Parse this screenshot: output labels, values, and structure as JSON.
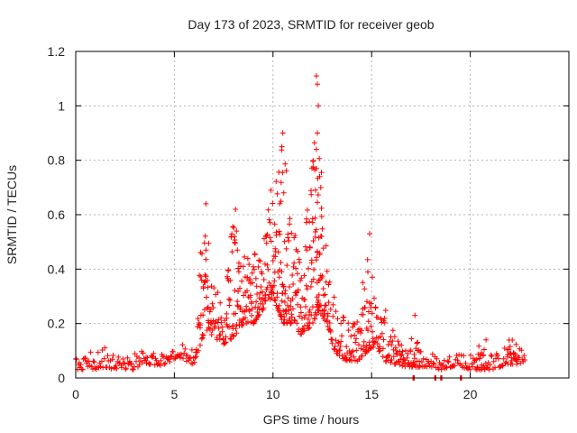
{
  "chart_data": {
    "type": "scatter",
    "title": "Day 173 of 2023, SRMTID for receiver geob",
    "xlabel": "GPS time / hours",
    "ylabel": "SRMTID / TECUs",
    "xlim": [
      0,
      25
    ],
    "ylim": [
      0,
      1.2
    ],
    "x_ticks": [
      0,
      5,
      10,
      15,
      20
    ],
    "x_tick_labels": [
      "0",
      "5",
      "10",
      "15",
      "20"
    ],
    "y_ticks": [
      0,
      0.2,
      0.4,
      0.6,
      0.8,
      1.0,
      1.2
    ],
    "y_tick_labels": [
      "0",
      "0.2",
      "0.4",
      "0.6",
      "0.8",
      "1",
      "1.2"
    ],
    "grid": true,
    "marker": "+",
    "series_color": "#ff0000",
    "series": [
      {
        "name": "SRMTID",
        "envelope": [
          [
            0.0,
            0.03,
            0.08
          ],
          [
            0.5,
            0.03,
            0.09
          ],
          [
            1.0,
            0.03,
            0.1
          ],
          [
            1.5,
            0.04,
            0.12
          ],
          [
            2.0,
            0.03,
            0.09
          ],
          [
            2.5,
            0.03,
            0.08
          ],
          [
            3.0,
            0.03,
            0.09
          ],
          [
            3.3,
            0.05,
            0.11
          ],
          [
            3.8,
            0.05,
            0.11
          ],
          [
            4.3,
            0.04,
            0.09
          ],
          [
            4.8,
            0.06,
            0.12
          ],
          [
            5.2,
            0.08,
            0.16
          ],
          [
            5.6,
            0.06,
            0.12
          ],
          [
            6.0,
            0.05,
            0.1
          ],
          [
            6.3,
            0.12,
            0.45
          ],
          [
            6.6,
            0.18,
            0.62
          ],
          [
            7.0,
            0.15,
            0.35
          ],
          [
            7.5,
            0.12,
            0.3
          ],
          [
            8.0,
            0.15,
            0.6
          ],
          [
            8.5,
            0.2,
            0.45
          ],
          [
            9.0,
            0.2,
            0.45
          ],
          [
            9.5,
            0.25,
            0.55
          ],
          [
            10.0,
            0.3,
            0.68
          ],
          [
            10.5,
            0.2,
            0.88
          ],
          [
            11.0,
            0.2,
            0.55
          ],
          [
            11.5,
            0.15,
            0.45
          ],
          [
            12.0,
            0.2,
            0.8
          ],
          [
            12.3,
            0.25,
            1.1
          ],
          [
            12.7,
            0.2,
            0.5
          ],
          [
            13.2,
            0.08,
            0.28
          ],
          [
            13.8,
            0.06,
            0.22
          ],
          [
            14.3,
            0.06,
            0.22
          ],
          [
            14.8,
            0.1,
            0.53
          ],
          [
            15.2,
            0.12,
            0.3
          ],
          [
            15.7,
            0.06,
            0.25
          ],
          [
            16.2,
            0.05,
            0.15
          ],
          [
            16.8,
            0.04,
            0.12
          ],
          [
            17.2,
            0.04,
            0.18
          ],
          [
            17.6,
            0.04,
            0.1
          ],
          [
            18.0,
            0.04,
            0.1
          ],
          [
            18.5,
            0.03,
            0.07
          ],
          [
            19.0,
            0.04,
            0.09
          ],
          [
            19.4,
            0.05,
            0.12
          ],
          [
            19.8,
            0.03,
            0.08
          ],
          [
            20.5,
            0.03,
            0.13
          ],
          [
            21.0,
            0.03,
            0.1
          ],
          [
            21.5,
            0.04,
            0.09
          ],
          [
            22.0,
            0.05,
            0.15
          ],
          [
            22.5,
            0.05,
            0.13
          ],
          [
            22.8,
            0.05,
            0.1
          ]
        ],
        "peaks": [
          [
            6.6,
            0.64
          ],
          [
            8.1,
            0.62
          ],
          [
            9.9,
            0.69
          ],
          [
            10.5,
            0.9
          ],
          [
            10.45,
            0.85
          ],
          [
            12.2,
            1.11
          ],
          [
            12.25,
            1.08
          ],
          [
            12.3,
            1.0
          ],
          [
            12.25,
            0.9
          ],
          [
            12.2,
            0.84
          ],
          [
            12.2,
            0.77
          ],
          [
            14.9,
            0.53
          ],
          [
            17.2,
            0.23
          ],
          [
            20.8,
            0.14
          ]
        ],
        "zeros": [
          17.1,
          18.2,
          18.5,
          19.5
        ]
      }
    ]
  }
}
